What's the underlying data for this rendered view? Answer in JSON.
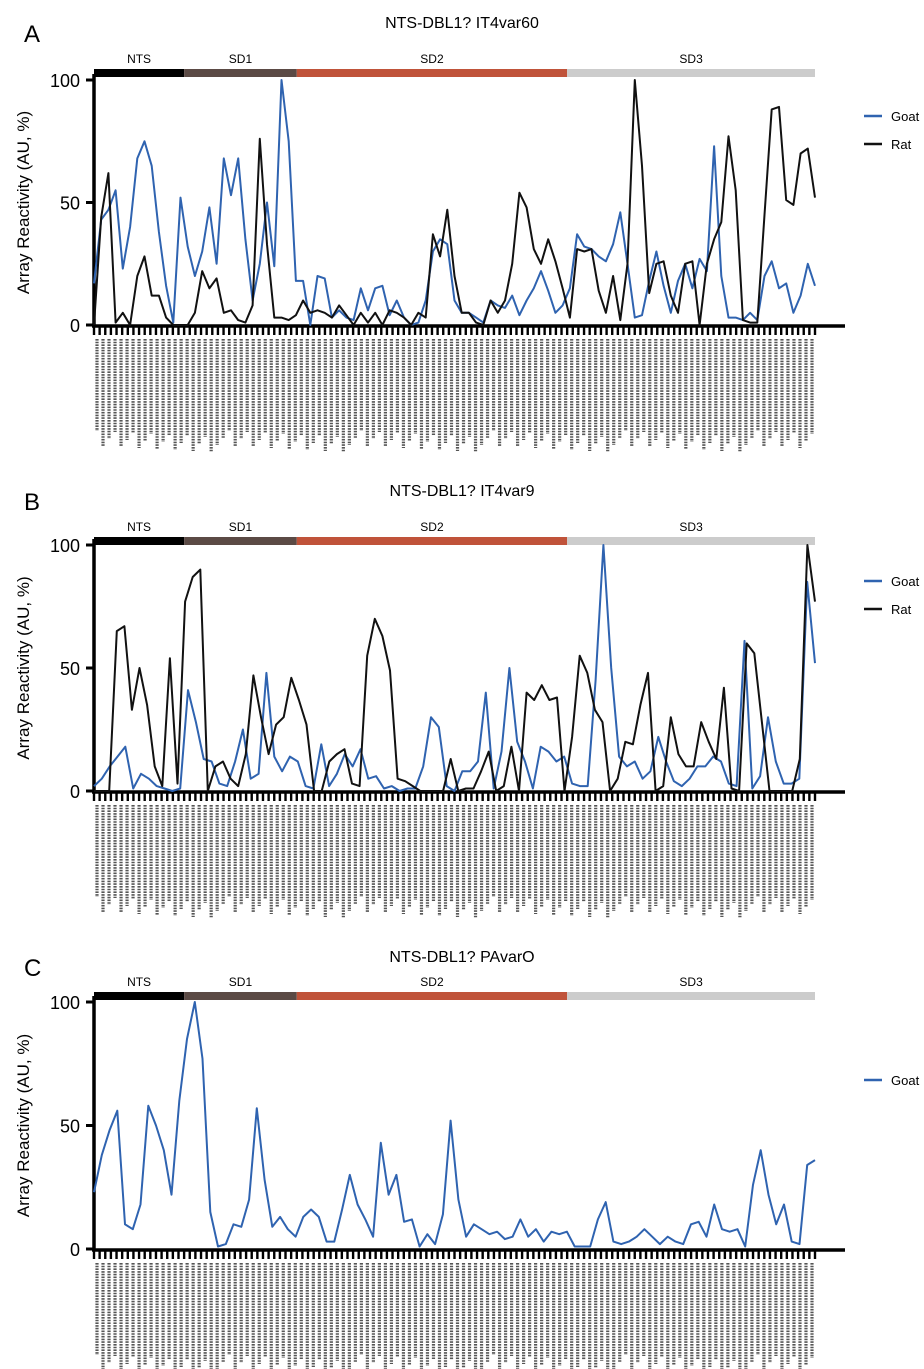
{
  "figure": {
    "tick_note": "x-axis tick labels are 15-mer peptide sequences (rotated, illegible at this resolution)"
  },
  "colors": {
    "goat": "#2f63b0",
    "rat": "#111111",
    "NTS": "#000000",
    "SD1": "#5b4a45",
    "SD2": "#c0533a",
    "SD3": "#cccccc"
  },
  "chart_data": [
    {
      "type": "line",
      "panel_label": "A",
      "title": "NTS-DBL1? IT4var60",
      "ylabel": "Array Reactivity (AU, %)",
      "ylim": [
        0,
        100
      ],
      "yticks": [
        0,
        50,
        100
      ],
      "domains": [
        {
          "name": "NTS",
          "start": 0,
          "end": 16
        },
        {
          "name": "SD1",
          "start": 16,
          "end": 36
        },
        {
          "name": "SD2",
          "start": 36,
          "end": 84
        },
        {
          "name": "SD3",
          "start": 84,
          "end": 128
        }
      ],
      "legend": [
        "Goat",
        "Rat"
      ],
      "series": [
        {
          "name": "Goat",
          "values": [
            17,
            43,
            47,
            55,
            23,
            40,
            68,
            75,
            65,
            38,
            16,
            1,
            52,
            32,
            20,
            30,
            48,
            25,
            68,
            53,
            68,
            35,
            10,
            25,
            50,
            24,
            100,
            75,
            18,
            18,
            0,
            20,
            19,
            3,
            6,
            3,
            2,
            15,
            6,
            15,
            16,
            4,
            10,
            3,
            0,
            1,
            10,
            30,
            35,
            33,
            10,
            5,
            5,
            3,
            1,
            10,
            8,
            7,
            12,
            4,
            10,
            15,
            22,
            14,
            5,
            8,
            15,
            37,
            32,
            31,
            28,
            26,
            33,
            46,
            25,
            3,
            4,
            18,
            30,
            16,
            5,
            18,
            25,
            15,
            27,
            22,
            73,
            20,
            3,
            3,
            2,
            5,
            2,
            20,
            26,
            15,
            17,
            5,
            12,
            25,
            16
          ]
        },
        {
          "name": "Rat",
          "values": [
            0,
            44,
            62,
            1,
            5,
            0,
            20,
            28,
            12,
            12,
            3,
            0,
            0,
            0,
            5,
            22,
            15,
            19,
            5,
            6,
            2,
            1,
            8,
            76,
            33,
            3,
            3,
            2,
            4,
            10,
            5,
            6,
            5,
            3,
            8,
            4,
            0,
            5,
            1,
            5,
            0,
            6,
            5,
            3,
            0,
            5,
            3,
            37,
            28,
            47,
            20,
            5,
            5,
            1,
            0,
            10,
            5,
            10,
            25,
            54,
            48,
            31,
            25,
            35,
            26,
            15,
            3,
            31,
            30,
            31,
            14,
            5,
            20,
            2,
            25,
            100,
            65,
            13,
            25,
            26,
            12,
            5,
            25,
            26,
            0,
            25,
            35,
            42,
            77,
            55,
            2,
            1,
            1,
            45,
            88,
            89,
            51,
            49,
            70,
            72,
            52
          ]
        }
      ]
    },
    {
      "type": "line",
      "panel_label": "B",
      "title": "NTS-DBL1? IT4var9",
      "ylabel": "Array Reactivity (AU, %)",
      "ylim": [
        0,
        100
      ],
      "yticks": [
        0,
        50,
        100
      ],
      "domains": [
        {
          "name": "NTS",
          "start": 0,
          "end": 16
        },
        {
          "name": "SD1",
          "start": 16,
          "end": 36
        },
        {
          "name": "SD2",
          "start": 36,
          "end": 84
        },
        {
          "name": "SD3",
          "start": 84,
          "end": 128
        }
      ],
      "legend": [
        "Goat",
        "Rat"
      ],
      "series": [
        {
          "name": "Goat",
          "values": [
            2,
            5,
            10,
            14,
            18,
            1,
            7,
            5,
            2,
            1,
            0,
            1,
            41,
            28,
            13,
            12,
            3,
            2,
            12,
            25,
            5,
            7,
            48,
            14,
            8,
            14,
            12,
            2,
            1,
            19,
            2,
            7,
            15,
            10,
            17,
            5,
            6,
            1,
            2,
            0,
            1,
            1,
            10,
            30,
            26,
            2,
            0,
            8,
            8,
            12,
            40,
            1,
            16,
            50,
            20,
            12,
            1,
            18,
            16,
            12,
            14,
            3,
            2,
            2,
            45,
            100,
            50,
            14,
            10,
            12,
            5,
            8,
            22,
            12,
            4,
            2,
            5,
            10,
            10,
            14,
            12,
            3,
            2,
            61,
            1,
            6,
            30,
            12,
            3,
            3,
            5,
            85,
            52
          ]
        },
        {
          "name": "Rat",
          "values": [
            0,
            0,
            0,
            65,
            67,
            33,
            50,
            35,
            10,
            2,
            54,
            3,
            77,
            87,
            90,
            0,
            10,
            12,
            5,
            2,
            15,
            47,
            30,
            15,
            27,
            30,
            46,
            37,
            27,
            0,
            0,
            12,
            15,
            17,
            3,
            2,
            55,
            70,
            63,
            49,
            5,
            4,
            2,
            0,
            0,
            0,
            0,
            13,
            0,
            1,
            1,
            8,
            16,
            0,
            2,
            18,
            0,
            40,
            37,
            43,
            37,
            38,
            0,
            22,
            55,
            48,
            33,
            28,
            0,
            5,
            20,
            19,
            35,
            48,
            0,
            2,
            30,
            15,
            10,
            10,
            28,
            20,
            13,
            42,
            1,
            0,
            60,
            56,
            28,
            0,
            0,
            0,
            0,
            13,
            100,
            77
          ]
        }
      ]
    },
    {
      "type": "line",
      "panel_label": "C",
      "title": "NTS-DBL1? PAvarO",
      "ylabel": "Array Reactivity (AU, %)",
      "ylim": [
        0,
        100
      ],
      "yticks": [
        0,
        50,
        100
      ],
      "domains": [
        {
          "name": "NTS",
          "start": 0,
          "end": 16
        },
        {
          "name": "SD1",
          "start": 16,
          "end": 36
        },
        {
          "name": "SD2",
          "start": 36,
          "end": 84
        },
        {
          "name": "SD3",
          "start": 84,
          "end": 128
        }
      ],
      "legend": [
        "Goat"
      ],
      "series": [
        {
          "name": "Goat",
          "values": [
            23,
            38,
            48,
            56,
            10,
            8,
            18,
            58,
            50,
            40,
            22,
            60,
            85,
            100,
            77,
            15,
            1,
            2,
            10,
            9,
            20,
            57,
            28,
            9,
            13,
            8,
            5,
            13,
            16,
            13,
            3,
            3,
            16,
            30,
            18,
            12,
            5,
            43,
            22,
            30,
            11,
            12,
            1,
            6,
            2,
            14,
            52,
            20,
            5,
            10,
            8,
            6,
            7,
            4,
            5,
            12,
            5,
            8,
            3,
            7,
            6,
            7,
            1,
            1,
            1,
            12,
            19,
            3,
            2,
            3,
            5,
            8,
            5,
            2,
            5,
            3,
            2,
            10,
            11,
            5,
            18,
            8,
            7,
            8,
            1,
            26,
            40,
            22,
            10,
            18,
            3,
            2,
            34,
            36
          ]
        }
      ]
    }
  ]
}
